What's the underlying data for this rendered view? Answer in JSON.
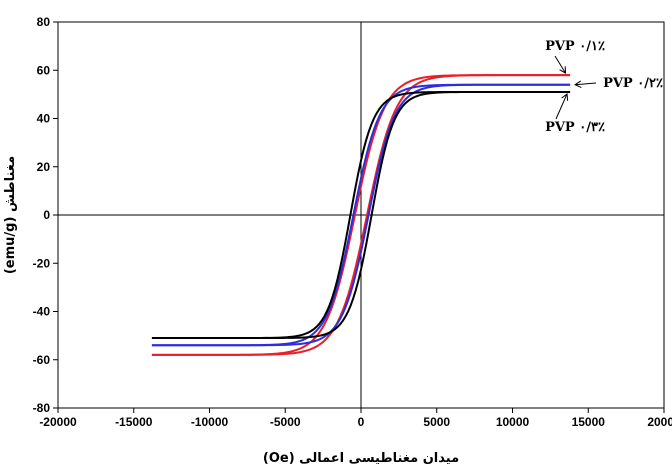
{
  "chart_data": {
    "type": "line",
    "title": "",
    "xlabel": "میدان مغناطیسی اعمالی (Oe)",
    "ylabel": "مغناطش (emu/g)",
    "xlim": [
      -20000,
      20000
    ],
    "ylim": [
      -80,
      80
    ],
    "x_ticks": [
      -20000,
      -15000,
      -10000,
      -5000,
      0,
      5000,
      10000,
      15000,
      20000
    ],
    "y_ticks": [
      -80,
      -60,
      -40,
      -20,
      0,
      20,
      40,
      60,
      80
    ],
    "x_tick_labels": [
      "-20000",
      "-15000",
      "-10000",
      "-5000",
      "0",
      "5000",
      "10000",
      "15000",
      "20000"
    ],
    "y_tick_labels": [
      "-80",
      "-60",
      "-40",
      "-20",
      "0",
      "20",
      "40",
      "60",
      "80"
    ],
    "grid": false,
    "legend": "none",
    "series": [
      {
        "name": "۰/۱٪ PVP",
        "color": "#e8202a",
        "ms": 58,
        "coercivity": 400,
        "k": 0.00052,
        "m_end": 58,
        "x_end": 13800
      },
      {
        "name": "۰/۲٪ PVP",
        "color": "#2d2de0",
        "ms": 54,
        "coercivity": 500,
        "k": 0.00058,
        "m_end": 54,
        "x_end": 13800
      },
      {
        "name": "۰/۳٪ PVP",
        "color": "#000000",
        "ms": 51,
        "coercivity": 700,
        "k": 0.00068,
        "m_end": 51,
        "x_end": 13800
      }
    ],
    "annotations": [
      {
        "text": "۰/۱٪ PVP",
        "series": 0,
        "x": 13400,
        "y": 58
      },
      {
        "text": "۰/۲٪ PVP",
        "series": 1,
        "x": 14000,
        "y": 54
      },
      {
        "text": "۰/۳٪ PVP",
        "series": 2,
        "x": 13400,
        "y": 50
      }
    ]
  }
}
